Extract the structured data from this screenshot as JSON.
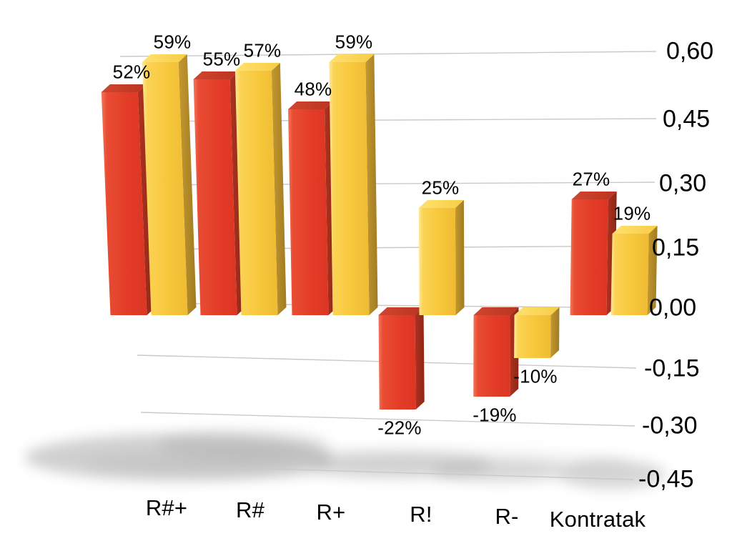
{
  "title": "",
  "colors": {
    "background": "#FFFFFF",
    "series_red": "#E6412D",
    "series_yellow": "#F7C93E",
    "gridline": "#C9C9C9",
    "text": "#000000",
    "shadow": "#8F8F8F"
  },
  "chart_data": {
    "type": "bar",
    "style": "3d-perspective-columns",
    "title": "",
    "xlabel": "",
    "ylabel": "",
    "categories": [
      "R#+",
      "R#",
      "R+",
      "R!",
      "R-",
      "Kontratak"
    ],
    "series": [
      {
        "color_name": "red",
        "color": "#E6412D",
        "values": [
          0.52,
          0.55,
          0.48,
          -0.22,
          -0.19,
          0.27
        ],
        "labels": [
          "52%",
          "55%",
          "48%",
          "-22%",
          "-19%",
          "27%"
        ]
      },
      {
        "color_name": "yellow",
        "color": "#F7C93E",
        "values": [
          0.59,
          0.57,
          0.59,
          0.25,
          -0.1,
          0.19
        ],
        "labels": [
          "59%",
          "57%",
          "59%",
          "25%",
          "-10%",
          "19%"
        ]
      }
    ],
    "y_axis": {
      "side": "right",
      "ticks": [
        "0,60",
        "0,45",
        "0,30",
        "0,15",
        "0,00",
        "-0,15",
        "-0,30",
        "-0,45"
      ],
      "tick_values": [
        0.6,
        0.45,
        0.3,
        0.15,
        0.0,
        -0.15,
        -0.3,
        -0.45
      ],
      "range": [
        -0.45,
        0.6
      ],
      "decimal_separator": ","
    },
    "grid": "horizontal",
    "legend": false,
    "data_labels": "outside-end"
  }
}
